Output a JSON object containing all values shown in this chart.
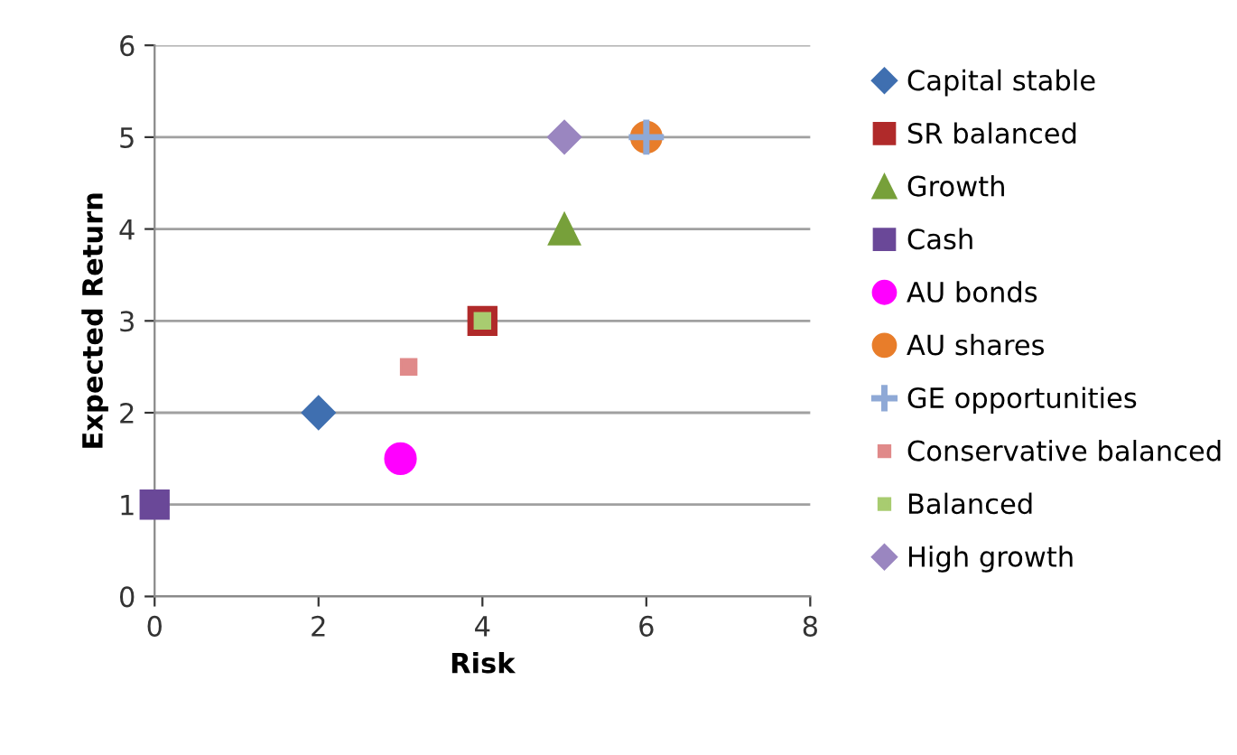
{
  "chart_data": {
    "type": "scatter",
    "xlabel": "Risk",
    "ylabel": "Expected Return",
    "xlim": [
      0,
      8
    ],
    "xticks": [
      0,
      2,
      4,
      6,
      8
    ],
    "ylim": [
      0,
      6
    ],
    "yticks": [
      0,
      1,
      2,
      3,
      4,
      5,
      6
    ],
    "grid": "y",
    "legend": "right",
    "series": [
      {
        "name": "Capital stable",
        "color": "#3f6fb0",
        "marker": "diamond",
        "x": [
          2
        ],
        "values": [
          2
        ]
      },
      {
        "name": "SR balanced",
        "color": "#b02a2a",
        "marker": "square",
        "x": [
          4
        ],
        "values": [
          3
        ]
      },
      {
        "name": "Growth",
        "color": "#77a03a",
        "marker": "triangle",
        "x": [
          5
        ],
        "values": [
          4
        ]
      },
      {
        "name": "Cash",
        "color": "#6a4898",
        "marker": "square",
        "x": [
          0
        ],
        "values": [
          1
        ]
      },
      {
        "name": "AU bonds",
        "color": "#ff00ff",
        "marker": "circle",
        "x": [
          3
        ],
        "values": [
          1.5
        ]
      },
      {
        "name": "AU shares",
        "color": "#e87d2a",
        "marker": "circle",
        "x": [
          6
        ],
        "values": [
          5
        ]
      },
      {
        "name": "GE opportunities",
        "color": "#8fa9d6",
        "marker": "cross",
        "x": [
          6
        ],
        "values": [
          5
        ]
      },
      {
        "name": "Conservative balanced",
        "color": "#e08a8a",
        "marker": "square",
        "x": [
          3.1
        ],
        "values": [
          2.5
        ]
      },
      {
        "name": "Balanced",
        "color": "#a8cc70",
        "marker": "square",
        "x": [
          4
        ],
        "values": [
          3
        ]
      },
      {
        "name": "High growth",
        "color": "#9a86c0",
        "marker": "diamond",
        "x": [
          5
        ],
        "values": [
          5
        ]
      }
    ]
  }
}
